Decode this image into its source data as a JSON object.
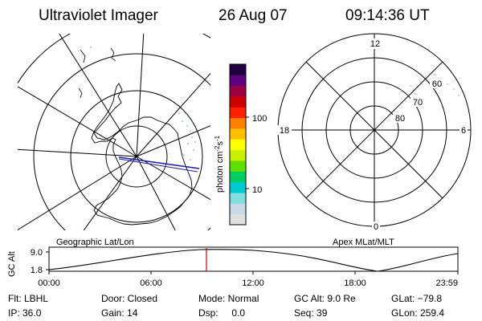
{
  "header": {
    "title": "Ultraviolet Imager",
    "date": "26 Aug 07",
    "time": "09:14:36 UT"
  },
  "left_panel": {
    "caption": "Geographic Lat/Lon"
  },
  "right_panel": {
    "caption": "Apex MLat/MLT",
    "mlt_labels": [
      "12",
      "18",
      "6",
      "0"
    ],
    "mlat_labels": [
      "60",
      "70",
      "80"
    ]
  },
  "colorbar": {
    "unit_label": "photon cm",
    "unit_sup1": "-2",
    "unit_s": "s",
    "unit_sup2": "-1",
    "ticks": [
      "100",
      "10"
    ],
    "colors": [
      "#e0e0e0",
      "#c8d8e8",
      "#7fe0e0",
      "#00c8d0",
      "#00d060",
      "#60e000",
      "#c8f000",
      "#ffff00",
      "#ffc000",
      "#ff8000",
      "#ff2000",
      "#d00000",
      "#a00040",
      "#600080",
      "#200040"
    ]
  },
  "orbit_plot": {
    "ylabel": "GC Alt",
    "y_ticks": [
      "9.0",
      "1.8"
    ],
    "x_ticks": [
      "00:00",
      "06:00",
      "12:00",
      "18:00",
      "23:59"
    ],
    "marker_color": "#cc0000"
  },
  "info": {
    "row1": [
      "Flt: LBHL",
      "Door: Closed",
      "Mode: Normal",
      "GC Alt: 9.0 Re",
      "GLat: −79.8"
    ],
    "row2": [
      "IP: 36.0",
      "Gain: 14",
      "Dsp:     0.0",
      "Seq: 39",
      "GLon: 259.4"
    ]
  }
}
